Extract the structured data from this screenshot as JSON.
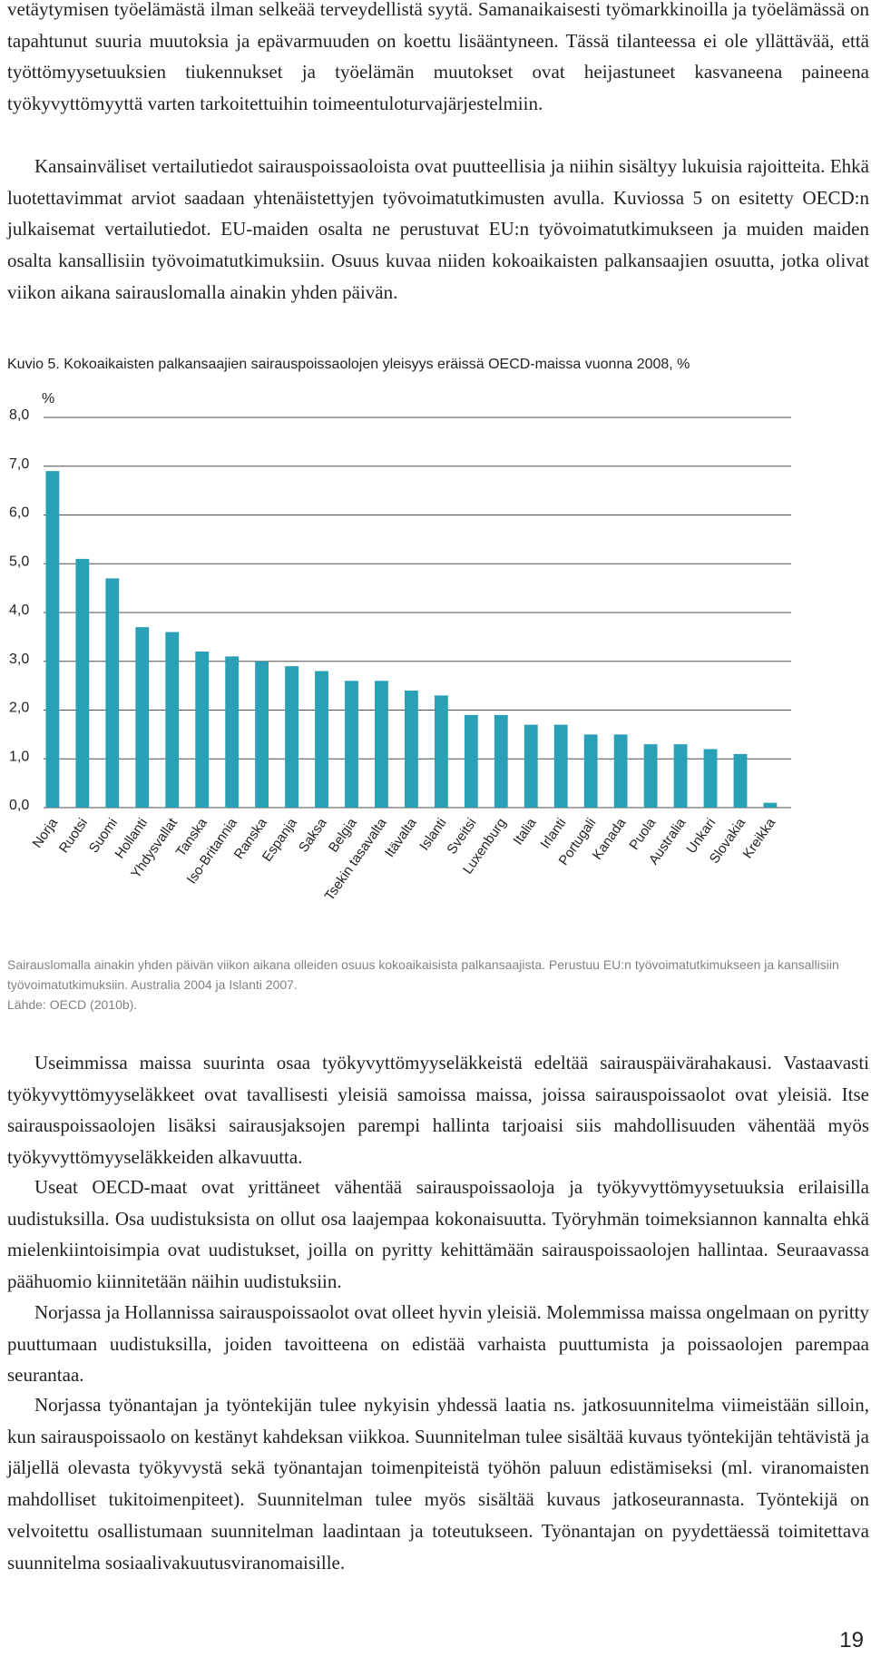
{
  "paragraphs_top": [
    "vetäytymisen työelämästä ilman selkeää terveydellistä syytä. Samanaikaisesti työmarkkinoilla ja työelämässä on tapahtunut suuria muutoksia ja epävarmuuden on koettu lisääntyneen. Tässä tilanteessa ei ole yllättävää, että työttömyysetuuksien tiukennukset ja työelämän muutokset ovat heijastuneet kasvaneena paineena työkyvyttömyyttä varten tarkoitettuihin toimeentuloturvajärjestelmiin.",
    "Kansainväliset vertailutiedot sairauspoissaoloista ovat puutteellisia ja niihin sisältyy lukuisia rajoitteita. Ehkä luotettavimmat arviot saadaan yhtenäistettyjen työvoimatutkimusten avulla. Kuviossa 5 on esitetty OECD:n julkaisemat vertailutiedot. EU-maiden osalta ne perustuvat EU:n työvoimatutkimukseen ja muiden maiden osalta kansallisiin työvoimatutkimuksiin. Osuus kuvaa niiden kokoaikaisten palkansaajien osuutta, jotka olivat viikon aikana sairauslomalla ainakin yhden päivän."
  ],
  "figure": {
    "caption": "Kuvio 5. Kokoaikaisten palkansaajien sairauspoissaolojen yleisyys eräissä OECD-maissa vuonna 2008, %",
    "note_lines": [
      "Sairauslomalla ainakin yhden päivän viikon aikana olleiden osuus kokoaikaisista palkansaajista. Perustuu EU:n työvoimatutkimukseen ja kansallisiin työvoimatutkimuksiin. Australia 2004 ja Islanti 2007.",
      "Lähde: OECD (2010b)."
    ]
  },
  "chart_data": {
    "type": "bar",
    "title": "",
    "xlabel": "",
    "ylabel": "%",
    "ylim": [
      0,
      8
    ],
    "yticks": [
      "0,0",
      "1,0",
      "2,0",
      "3,0",
      "4,0",
      "5,0",
      "6,0",
      "7,0",
      "8,0"
    ],
    "grid": true,
    "bar_color": "#2aa0b6",
    "categories": [
      "Norja",
      "Ruotsi",
      "Suomi",
      "Hollanti",
      "Yhdysvallat",
      "Tanska",
      "Iso-Britannia",
      "Ranska",
      "Espanja",
      "Saksa",
      "Belgia",
      "Tsekin tasavalta",
      "Itävalta",
      "Islanti",
      "Sveitsi",
      "Luxenburg",
      "Italia",
      "Irlanti",
      "Portugali",
      "Kanada",
      "Puola",
      "Australia",
      "Unkari",
      "Slovakia",
      "Kreikka"
    ],
    "values": [
      6.9,
      5.1,
      4.7,
      3.7,
      3.6,
      3.2,
      3.1,
      3.0,
      2.9,
      2.8,
      2.6,
      2.6,
      2.4,
      2.3,
      1.9,
      1.9,
      1.7,
      1.7,
      1.5,
      1.5,
      1.3,
      1.3,
      1.2,
      1.1,
      0.1
    ]
  },
  "paragraphs_bottom": [
    "Useimmissa maissa suurinta osaa työkyvyttömyyseläkkeistä edeltää sairauspäivärahakausi. Vastaavasti työkyvyttömyyseläkkeet ovat tavallisesti yleisiä samoissa maissa, joissa sairauspoissaolot ovat yleisiä. Itse sairauspoissaolojen lisäksi sairausjaksojen parempi hallinta tarjoaisi siis mahdollisuuden vähentää myös työkyvyttömyyseläkkeiden alkavuutta.",
    "Useat OECD-maat ovat yrittäneet vähentää sairauspoissaoloja ja työkyvyttömyysetuuksia erilaisilla uudistuksilla. Osa uudistuksista on ollut osa laajempaa kokonaisuutta. Työryhmän toimeksiannon kannalta ehkä mielenkiintoisimpia ovat uudistukset, joilla on pyritty kehittämään sairauspoissaolojen hallintaa. Seuraavassa päähuomio kiinnitetään näihin uudistuksiin.",
    "Norjassa ja Hollannissa sairauspoissaolot ovat olleet hyvin yleisiä. Molemmissa maissa ongelmaan on pyritty puuttumaan uudistuksilla, joiden tavoitteena on edistää varhaista puuttumista ja poissaolojen parempaa seurantaa.",
    "Norjassa työnantajan ja työntekijän tulee nykyisin yhdessä laatia ns. jatkosuunnitelma viimeistään silloin, kun sairauspoissaolo on kestänyt kahdeksan viikkoa. Suunnitelman tulee sisältää kuvaus työntekijän tehtävistä ja jäljellä olevasta työkyvystä sekä työnantajan toimenpiteistä työhön paluun edistämiseksi (ml. viranomaisten mahdolliset tukitoimenpiteet). Suunnitelman tulee myös sisältää kuvaus jatkoseurannasta. Työntekijä on velvoitettu osallistumaan suunnitelman laadintaan ja toteutukseen. Työnantajan on pyydettäessä toimitettava suunnitelma sosiaalivakuutusviranomaisille."
  ],
  "page_number": "19"
}
